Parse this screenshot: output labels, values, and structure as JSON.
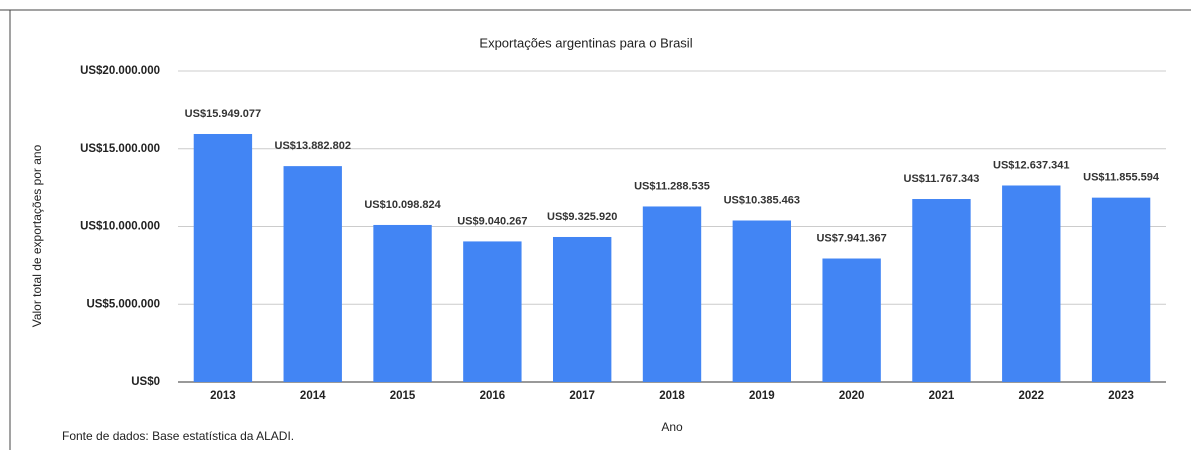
{
  "chart_data": {
    "type": "bar",
    "title": "Exportações argentinas para o Brasil",
    "x_label": "Ano",
    "y_label": "Valor total de exportações por ano",
    "source": "Fonte de dados: Base estatística da ALADI.",
    "categories": [
      "2013",
      "2014",
      "2015",
      "2016",
      "2017",
      "2018",
      "2019",
      "2020",
      "2021",
      "2022",
      "2023"
    ],
    "values": [
      15949077,
      13882802,
      10098824,
      9040267,
      9325920,
      11288535,
      10385463,
      7941367,
      11767343,
      12637341,
      11855594
    ],
    "value_labels": [
      "US$15.949.077",
      "US$13.882.802",
      "US$10.098.824",
      "US$9.040.267",
      "US$9.325.920",
      "US$11.288.535",
      "US$10.385.463",
      "US$7.941.367",
      "US$11.767.343",
      "US$12.637.341",
      "US$11.855.594"
    ],
    "color": "#4285f4",
    "ylim": [
      0,
      20000000
    ],
    "yticks": [
      {
        "value": 0,
        "label": "US$0"
      },
      {
        "value": 5000000,
        "label": "US$5.000.000"
      },
      {
        "value": 10000000,
        "label": "US$10.000.000"
      },
      {
        "value": 15000000,
        "label": "US$15.000.000"
      },
      {
        "value": 20000000,
        "label": "US$20.000.000"
      }
    ],
    "grid": true
  }
}
